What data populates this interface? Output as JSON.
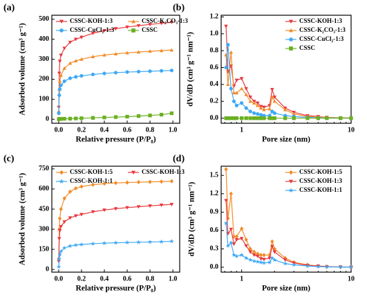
{
  "chart_data": [
    {
      "type": "line",
      "panel": "(a)",
      "xlabel": "Relative pressure (P/P₀)",
      "ylabel": "Adsorbed volume (cm³ g⁻¹)",
      "x": [
        0.001,
        0.005,
        0.01,
        0.02,
        0.05,
        0.1,
        0.15,
        0.2,
        0.3,
        0.4,
        0.5,
        0.6,
        0.7,
        0.8,
        0.9,
        0.99
      ],
      "xlim": [
        -0.06,
        1.06
      ],
      "xticks": [
        {
          "value": 0,
          "label": "0.0"
        },
        0.2,
        0.4,
        0.6,
        0.8,
        {
          "value": 1,
          "label": "1.0"
        }
      ],
      "ylim": [
        -20,
        520
      ],
      "yticks": [
        0,
        100,
        200,
        300,
        400,
        500
      ],
      "legend_loc": "upper left",
      "legend_columns": 2,
      "series": [
        {
          "name": "CSSC-KOH-1:3",
          "color": "#e8383d",
          "marker": "triangle-down",
          "values": [
            60,
            230,
            290,
            320,
            355,
            385,
            400,
            410,
            430,
            443,
            453,
            461,
            468,
            474,
            480,
            485
          ]
        },
        {
          "name": "CSSC-K₂CO₃-1:3",
          "color": "#f28c28",
          "marker": "triangle-up",
          "values": [
            40,
            150,
            190,
            220,
            255,
            280,
            292,
            300,
            313,
            321,
            327,
            332,
            336,
            340,
            343,
            346
          ]
        },
        {
          "name": "CSSC-CuCl₂-1:3",
          "color": "#3fa9f5",
          "marker": "circle",
          "values": [
            30,
            120,
            150,
            170,
            190,
            205,
            212,
            217,
            224,
            229,
            233,
            236,
            238,
            240,
            242,
            244
          ]
        },
        {
          "name": "CSSC",
          "color": "#6ab023",
          "marker": "square",
          "values": [
            0.5,
            1,
            1.5,
            2,
            2.5,
            3,
            4,
            5,
            7,
            9,
            11,
            13,
            16,
            19,
            23,
            30
          ]
        }
      ]
    },
    {
      "type": "line",
      "panel": "(b)",
      "xlabel": "Pore size (nm)",
      "ylabel": "dV/dD (cm³ g⁻¹ nm⁻¹)",
      "log_x": true,
      "x": [
        0.72,
        0.75,
        0.8,
        0.85,
        0.9,
        1.0,
        1.1,
        1.2,
        1.3,
        1.4,
        1.5,
        1.6,
        1.8,
        1.9,
        2.0,
        2.5,
        3,
        4,
        5,
        6,
        8,
        10
      ],
      "xlim": [
        0.65,
        10
      ],
      "xticks": [
        1,
        10
      ],
      "ylim": [
        -0.06,
        1.22
      ],
      "yticks": [
        {
          "value": 0,
          "label": "0.0"
        },
        0.2,
        0.4,
        0.6,
        0.8,
        {
          "value": 1,
          "label": "1.0"
        },
        1.2
      ],
      "legend_loc": "upper right",
      "legend_columns": 1,
      "series": [
        {
          "name": "CSSC-KOH-1:3",
          "color": "#e8383d",
          "marker": "triangle-down",
          "values": [
            1.09,
            0.55,
            0.62,
            0.38,
            0.45,
            0.47,
            0.35,
            0.25,
            0.2,
            0.18,
            0.14,
            0.13,
            0.15,
            0.34,
            0.25,
            0.12,
            0.07,
            0.03,
            0.02,
            0.01,
            0.005,
            0.003
          ]
        },
        {
          "name": "CSSC-K₂CO₃-1:3",
          "color": "#f28c28",
          "marker": "triangle-up",
          "values": [
            0.75,
            0.4,
            0.78,
            0.3,
            0.3,
            0.35,
            0.28,
            0.2,
            0.18,
            0.15,
            0.12,
            0.1,
            0.11,
            0.25,
            0.2,
            0.1,
            0.05,
            0.02,
            0.015,
            0.01,
            0.004,
            0.002
          ]
        },
        {
          "name": "CSSC-CuCl₂-1:3",
          "color": "#3fa9f5",
          "marker": "circle",
          "values": [
            0.6,
            0.87,
            0.35,
            0.2,
            0.15,
            0.18,
            0.12,
            0.08,
            0.06,
            0.05,
            0.04,
            0.03,
            0.03,
            0.08,
            0.06,
            0.03,
            0.02,
            0.01,
            0.005,
            0.003,
            0.002,
            0.001
          ]
        },
        {
          "name": "CSSC",
          "color": "#6ab023",
          "marker": "square",
          "values": [
            0,
            0,
            0,
            0,
            0,
            0,
            0,
            0,
            0,
            0,
            0,
            0,
            0,
            0,
            0,
            0,
            0,
            0,
            0,
            0,
            0,
            0
          ]
        }
      ]
    },
    {
      "type": "line",
      "panel": "(c)",
      "xlabel": "Relative pressure (P/P₀)",
      "ylabel": "Adsorbed volume (cm³ g⁻¹)",
      "x": [
        0.001,
        0.005,
        0.01,
        0.02,
        0.05,
        0.1,
        0.15,
        0.2,
        0.3,
        0.4,
        0.5,
        0.6,
        0.7,
        0.8,
        0.9,
        0.99
      ],
      "xlim": [
        -0.06,
        1.06
      ],
      "xticks": [
        {
          "value": 0,
          "label": "0.0"
        },
        0.2,
        0.4,
        0.6,
        0.8,
        {
          "value": 1,
          "label": "1.0"
        }
      ],
      "ylim": [
        -20,
        770
      ],
      "yticks": [
        0,
        150,
        300,
        450,
        600,
        750
      ],
      "legend_loc": "upper left",
      "legend_columns": 2,
      "series": [
        {
          "name": "CSSC-KOH-1:5",
          "color": "#f28c28",
          "marker": "diamond",
          "values": [
            80,
            300,
            380,
            450,
            530,
            580,
            605,
            618,
            632,
            640,
            645,
            648,
            651,
            653,
            655,
            658
          ]
        },
        {
          "name": "CSSC-KOH-1:3",
          "color": "#e8383d",
          "marker": "triangle-down",
          "values": [
            60,
            230,
            290,
            320,
            355,
            385,
            400,
            410,
            430,
            443,
            453,
            461,
            468,
            474,
            480,
            485
          ]
        },
        {
          "name": "CSSC-KOH-1:1",
          "color": "#3fa9f5",
          "marker": "star",
          "values": [
            20,
            80,
            110,
            135,
            160,
            175,
            182,
            186,
            192,
            196,
            199,
            201,
            203,
            205,
            207,
            210
          ]
        }
      ]
    },
    {
      "type": "line",
      "panel": "(d)",
      "xlabel": "Pore size (nm)",
      "ylabel": "dV/dD (cm³ g⁻¹ nm⁻¹)",
      "log_x": true,
      "x": [
        0.72,
        0.75,
        0.8,
        0.85,
        0.9,
        1.0,
        1.1,
        1.2,
        1.3,
        1.4,
        1.5,
        1.6,
        1.8,
        1.9,
        2.0,
        2.5,
        3,
        4,
        5,
        6,
        8,
        10
      ],
      "xlim": [
        0.65,
        10
      ],
      "xticks": [
        1,
        10
      ],
      "ylim": [
        -0.08,
        1.65
      ],
      "yticks": [
        {
          "value": 0,
          "label": "0.0"
        },
        0.3,
        0.6,
        0.9,
        1.2,
        1.5
      ],
      "legend_loc": "upper right",
      "legend_columns": 1,
      "series": [
        {
          "name": "CSSC-KOH-1:5",
          "color": "#f28c28",
          "marker": "diamond",
          "values": [
            1.6,
            0.8,
            1.2,
            0.5,
            0.5,
            0.63,
            0.45,
            0.3,
            0.25,
            0.22,
            0.2,
            0.2,
            0.2,
            0.42,
            0.3,
            0.15,
            0.08,
            0.04,
            0.02,
            0.01,
            0.005,
            0.003
          ]
        },
        {
          "name": "CSSC-KOH-1:3",
          "color": "#e8383d",
          "marker": "triangle-down",
          "values": [
            1.09,
            0.55,
            0.62,
            0.38,
            0.45,
            0.47,
            0.35,
            0.25,
            0.2,
            0.18,
            0.14,
            0.13,
            0.15,
            0.34,
            0.25,
            0.12,
            0.07,
            0.03,
            0.02,
            0.01,
            0.005,
            0.003
          ]
        },
        {
          "name": "CSSC-KOH-1:1",
          "color": "#3fa9f5",
          "marker": "star",
          "values": [
            0.72,
            0.35,
            0.4,
            0.2,
            0.18,
            0.2,
            0.15,
            0.12,
            0.1,
            0.09,
            0.08,
            0.07,
            0.08,
            0.15,
            0.12,
            0.06,
            0.04,
            0.02,
            0.01,
            0.005,
            0.003,
            0.002
          ]
        }
      ]
    }
  ]
}
